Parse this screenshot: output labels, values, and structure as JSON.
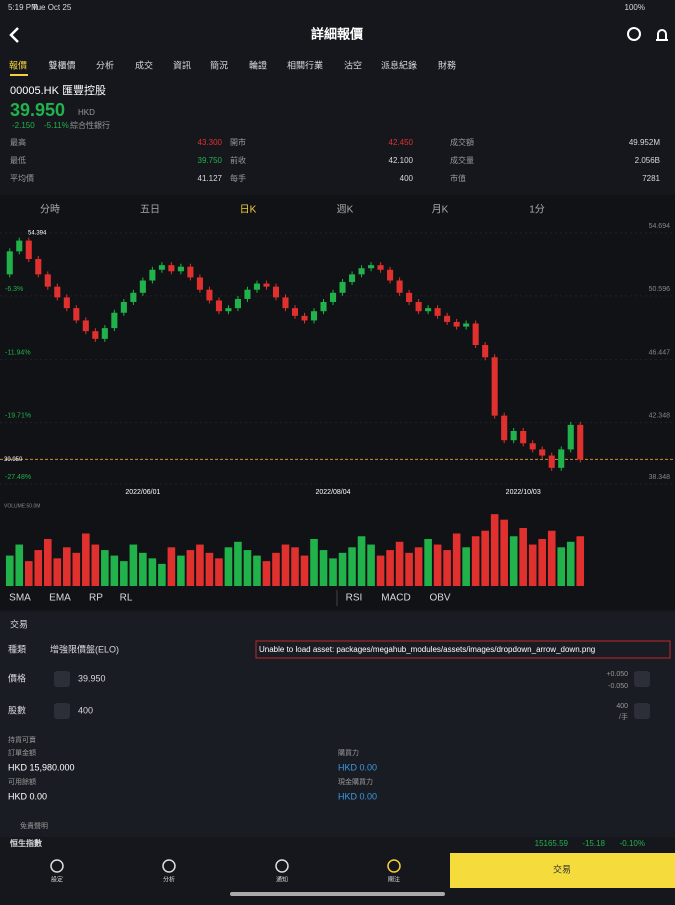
{
  "status": {
    "time": "5:19 PM",
    "date": "Tue Oct 25",
    "battery": "100%"
  },
  "header": {
    "title": "詳細報價"
  },
  "tabs": [
    "報價",
    "雙櫃價",
    "分析",
    "成交",
    "資訊",
    "簡況",
    "輪證",
    "相關行業",
    "沽空",
    "派息紀錄",
    "財務"
  ],
  "quote": {
    "code": "00005.HK",
    "name": "匯豐控股",
    "price": "39.950",
    "currency": "HKD",
    "change": "-2.150",
    "change_pct": "-5.11%",
    "sector": "綜合性銀行"
  },
  "stats": [
    {
      "label": "最高",
      "value": "43.300"
    },
    {
      "label": "開市",
      "value": "42.450"
    },
    {
      "label": "成交額",
      "value": "49.952M"
    },
    {
      "label": "最低",
      "value": "39.750"
    },
    {
      "label": "前收",
      "value": "42.100"
    },
    {
      "label": "成交量",
      "value": "2.056B"
    },
    {
      "label": "平均價",
      "value": "41.127"
    },
    {
      "label": "每手",
      "value": "400"
    },
    {
      "label": "市值",
      "value": "7281"
    }
  ],
  "chart_tabs": [
    "分時",
    "五日",
    "日K",
    "週K",
    "月K",
    "1分"
  ],
  "chart_data": {
    "type": "candlestick",
    "up_color": "#21b24b",
    "down_color": "#e0312f",
    "first_open": 52,
    "close": [
      53.5,
      54.2,
      53,
      52,
      51.2,
      50.5,
      49.8,
      49,
      48.3,
      47.8,
      48.5,
      49.5,
      50.2,
      50.8,
      51.6,
      52.3,
      52.6,
      52.2,
      52.5,
      51.8,
      51,
      50.3,
      49.6,
      49.8,
      50.4,
      51,
      51.4,
      51.2,
      50.5,
      49.8,
      49.3,
      49,
      49.6,
      50.2,
      50.8,
      51.5,
      52,
      52.4,
      52.6,
      52.3,
      51.6,
      50.8,
      50.2,
      49.6,
      49.8,
      49.3,
      48.9,
      48.6,
      48.8,
      47.4,
      46.6,
      42.8,
      41.2,
      41.8,
      41,
      40.6,
      40.2,
      39.4,
      40.6,
      42.2,
      39.95
    ],
    "volume": [
      22,
      30,
      18,
      26,
      34,
      20,
      28,
      24,
      38,
      30,
      26,
      22,
      18,
      30,
      24,
      20,
      16,
      28,
      22,
      26,
      30,
      24,
      20,
      28,
      32,
      26,
      22,
      18,
      24,
      30,
      28,
      22,
      34,
      26,
      20,
      24,
      28,
      36,
      30,
      22,
      26,
      32,
      24,
      28,
      34,
      30,
      26,
      38,
      28,
      36,
      40,
      52,
      48,
      36,
      42,
      30,
      34,
      40,
      28,
      32,
      36
    ],
    "volume_ylim": [
      0,
      55
    ],
    "categories": [
      null,
      null,
      null,
      null,
      null,
      null,
      null,
      null,
      null,
      null,
      null,
      null,
      null,
      null,
      "2022/06/01",
      null,
      null,
      null,
      null,
      null,
      null,
      null,
      null,
      null,
      null,
      null,
      null,
      null,
      null,
      null,
      null,
      null,
      null,
      null,
      "2022/08/04",
      null,
      null,
      null,
      null,
      null,
      null,
      null,
      null,
      null,
      null,
      null,
      null,
      null,
      null,
      null,
      null,
      null,
      null,
      null,
      "2022/10/03",
      null,
      null,
      null,
      null,
      null,
      null
    ],
    "ylim": [
      38.348,
      54.694
    ],
    "yticks": [
      54.694,
      50.596,
      46.447,
      42.348,
      38.348
    ],
    "percent_labels": [
      null,
      "-6.3%",
      "-11.94%",
      "-19.71%",
      "-27.48%"
    ],
    "high_marker": "54.394",
    "last_price": {
      "value": 39.95,
      "label": "39.950"
    },
    "volume_label": "VOLUME:50.0M"
  },
  "indicators_left": [
    "SMA",
    "EMA",
    "RP",
    "RL"
  ],
  "indicators_right": [
    "RSI",
    "MACD",
    "OBV"
  ],
  "trade": {
    "title": "交易",
    "type_label": "種類",
    "type_value": "增強限價盤(ELO)",
    "error": "Unable to load asset: packages/megahub_modules/assets/images/dropdown_arrow_down.png",
    "price_label": "價格",
    "price_value": "39.950",
    "price_up": "+0.050",
    "price_down": "-0.050",
    "qty_label": "股數",
    "qty_value": "400",
    "lot": "400",
    "lot_unit": "/手",
    "sellable": "持貨可賣",
    "order_amount_label": "訂單金額",
    "order_amount": "HKD 15,980.000",
    "buying_power_label": "購買力",
    "buying_power": "HKD 0.00",
    "available_label": "可用餘額",
    "available": "HKD 0.00",
    "cash_power_label": "現金購買力",
    "cash_power": "HKD 0.00",
    "disclaimer": "免責聲明"
  },
  "ticker": {
    "name": "恒生指數",
    "value": "15165.59",
    "change": "-15.18",
    "pct": "-0.10%"
  },
  "nav": [
    "設定",
    "分析",
    "通知",
    "關注"
  ],
  "nav_button": "交易"
}
